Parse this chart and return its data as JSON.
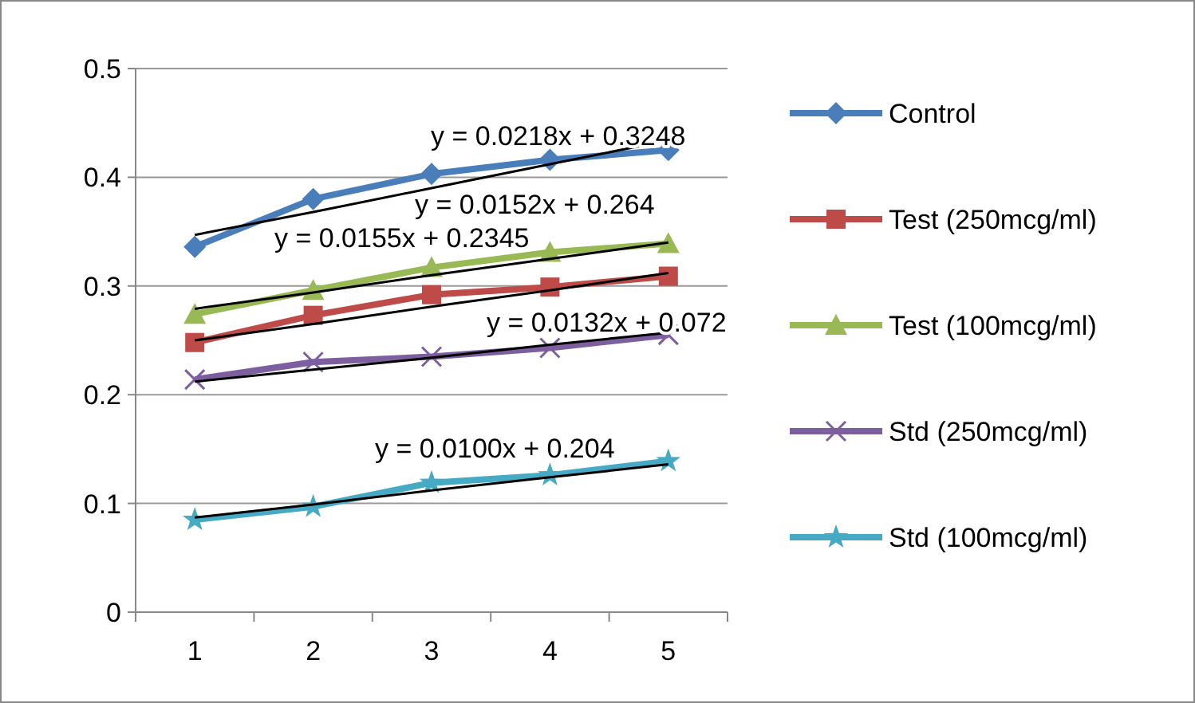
{
  "chart_data": {
    "type": "line",
    "categories": [
      "1",
      "2",
      "3",
      "4",
      "5"
    ],
    "ylim": [
      0,
      0.5
    ],
    "yticks": [
      0,
      0.1,
      0.2,
      0.3,
      0.4,
      0.5
    ],
    "grid": "y",
    "legend": "right",
    "line_style": "solid",
    "series": [
      {
        "name": "Control",
        "color": "#4a7ebb",
        "marker": "diamond",
        "values": [
          0.336,
          0.38,
          0.403,
          0.416,
          0.425
        ]
      },
      {
        "name": "Test (250mcg/ml)",
        "color": "#be4b48",
        "marker": "square",
        "values": [
          0.248,
          0.273,
          0.292,
          0.299,
          0.309
        ]
      },
      {
        "name": "Test (100mcg/ml)",
        "color": "#98b954",
        "marker": "triangle",
        "values": [
          0.274,
          0.296,
          0.317,
          0.331,
          0.339
        ]
      },
      {
        "name": "Std (250mcg/ml)",
        "color": "#7d5fa0",
        "marker": "cross",
        "values": [
          0.214,
          0.23,
          0.235,
          0.243,
          0.255
        ]
      },
      {
        "name": "Std (100mcg/ml)",
        "color": "#46aac5",
        "marker": "star",
        "values": [
          0.085,
          0.097,
          0.119,
          0.126,
          0.139
        ]
      },
      {
        "color": "#000000",
        "marker": "none",
        "values": [
          0.347,
          0.368,
          0.39,
          0.412,
          0.434
        ]
      },
      {
        "color": "#000000",
        "marker": "none",
        "values": [
          0.25,
          0.265,
          0.281,
          0.296,
          0.312
        ]
      },
      {
        "color": "#000000",
        "marker": "none",
        "values": [
          0.279,
          0.294,
          0.31,
          0.325,
          0.34
        ]
      },
      {
        "color": "#000000",
        "marker": "none",
        "values": [
          0.212,
          0.223,
          0.234,
          0.246,
          0.257
        ]
      },
      {
        "color": "#000000",
        "marker": "none",
        "values": [
          0.087,
          0.099,
          0.112,
          0.124,
          0.136
        ]
      }
    ],
    "annotations": [
      "y = 0.0218x + 0.3248",
      "y = 0.0152x + 0.264",
      "y = 0.0155x + 0.2345",
      "y = 0.0132x + 0.072",
      "y = 0.0100x + 0.204"
    ]
  }
}
